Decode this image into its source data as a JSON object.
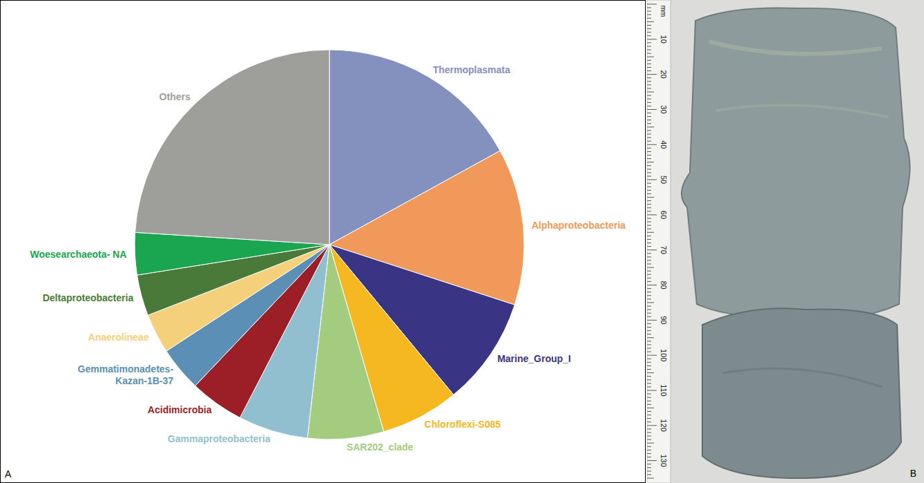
{
  "chart_data": {
    "type": "pie",
    "panel_label": "A",
    "categories": [
      "Thermoplasmata",
      "Alphaproteobacteria",
      "Marine_Group_I",
      "Chloroflexi-S085",
      "SAR202_clade",
      "Gammaproteobacteria",
      "Acidimicrobia",
      "Gemmatimonadetes-Kazan-1B-37",
      "Anaerolineae",
      "Deltaproteobacteria",
      "Woesearchaeota- NA",
      "Others"
    ],
    "values": [
      17,
      13,
      9,
      6.5,
      6.3,
      5.8,
      4.5,
      3.7,
      3.3,
      3.4,
      3.5,
      24
    ],
    "colors": [
      "#8490be",
      "#f0995a",
      "#3a3484",
      "#f5b820",
      "#a3cc7f",
      "#92bfd0",
      "#9c1f27",
      "#5b8fb5",
      "#f5d07a",
      "#4a7a3a",
      "#1aa650",
      "#9e9e9b"
    ]
  },
  "photo": {
    "panel_label": "B",
    "ruler": {
      "unit": "mm",
      "range": [
        0,
        135
      ],
      "ticks": [
        10,
        20,
        30,
        40,
        50,
        60,
        70,
        80,
        90,
        100,
        110,
        120,
        130
      ]
    }
  }
}
